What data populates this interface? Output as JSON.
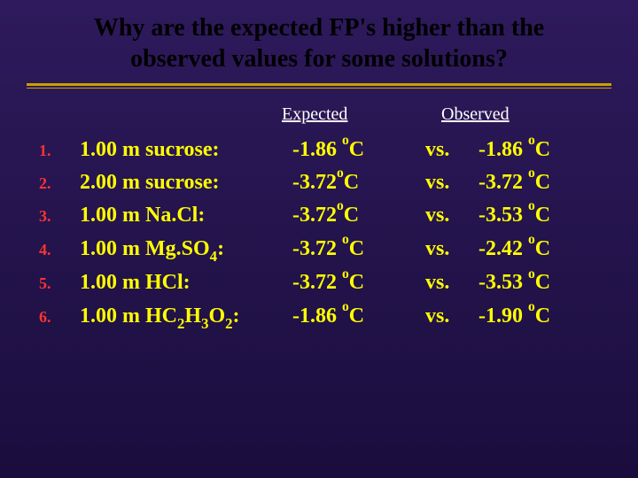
{
  "title": {
    "line1": "Why are the expected FP's higher than the",
    "line2": "observed values for some solutions?",
    "fontsize": 28,
    "color": "#000000"
  },
  "rule": {
    "color": "#cba000"
  },
  "headers": {
    "expected": "Expected",
    "observed": "Observed",
    "fontsize": 20,
    "color": "#ffffff"
  },
  "row_style": {
    "fontsize": 24,
    "color": "#ffff00",
    "number_color": "#ff3333",
    "number_fontsize": 18
  },
  "rows": [
    {
      "n": "1.",
      "solution_html": "1.00 m sucrose:",
      "expected_html": "-1.86 <sup>o</sup>C",
      "vs": "vs.",
      "observed_html": "-1.86 <sup>o</sup>C"
    },
    {
      "n": "2.",
      "solution_html": "2.00 m sucrose:",
      "expected_html": "-3.72<sup>o</sup>C",
      "vs": "vs.",
      "observed_html": "-3.72 <sup>o</sup>C"
    },
    {
      "n": "3.",
      "solution_html": "1.00 m Na.Cl:",
      "expected_html": "-3.72<sup>o</sup>C",
      "vs": "vs.",
      "observed_html": "-3.53  <sup>o</sup>C"
    },
    {
      "n": "4.",
      "solution_html": "1.00 m Mg.SO<sub>4</sub>:",
      "expected_html": "-3.72 <sup>o</sup>C",
      "vs": "vs.",
      "observed_html": "-2.42 <sup>o</sup>C"
    },
    {
      "n": "5.",
      "solution_html": "1.00 m HCl:",
      "expected_html": "-3.72 <sup>o</sup>C",
      "vs": "vs.",
      "observed_html": " -3.53 <sup>o</sup>C"
    },
    {
      "n": "6.",
      "solution_html": "1.00 m HC<sub>2</sub>H<sub>3</sub>O<sub>2</sub>:",
      "expected_html": "-1.86 <sup>o</sup>C",
      "vs": " vs.",
      "observed_html": "-1.90 <sup>o</sup>C"
    }
  ]
}
